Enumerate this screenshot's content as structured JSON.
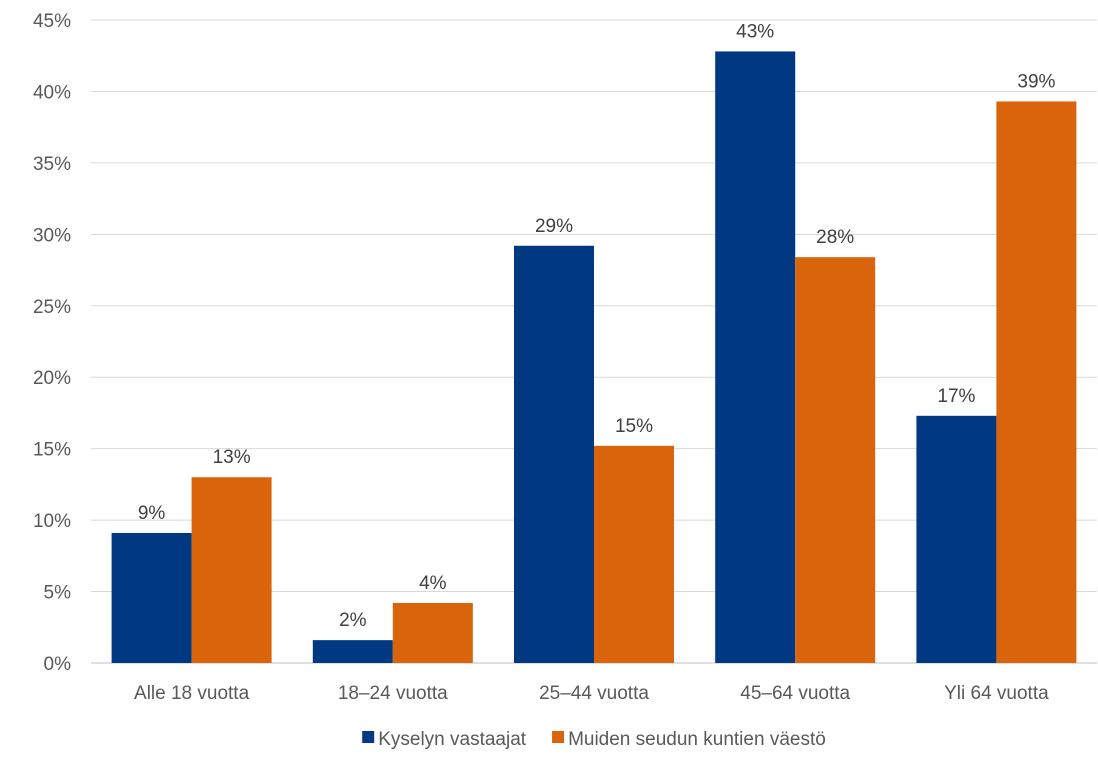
{
  "chart_data": {
    "type": "bar",
    "categories": [
      "Alle 18 vuotta",
      "18–24 vuotta",
      "25–44 vuotta",
      "45–64 vuotta",
      "Yli 64 vuotta"
    ],
    "series": [
      {
        "name": "Kyselyn vastaajat",
        "color": "#003882",
        "values": [
          9.1,
          1.6,
          29.2,
          42.8,
          17.3
        ],
        "labels": [
          "9%",
          "2%",
          "29%",
          "43%",
          "17%"
        ]
      },
      {
        "name": "Muiden seudun kuntien väestö",
        "color": "#d9640c",
        "values": [
          13.0,
          4.2,
          15.2,
          28.4,
          39.3
        ],
        "labels": [
          "13%",
          "4%",
          "15%",
          "28%",
          "39%"
        ]
      }
    ],
    "ylim": [
      0,
      45
    ],
    "yticks": [
      0,
      5,
      10,
      15,
      20,
      25,
      30,
      35,
      40,
      45
    ],
    "ytick_labels": [
      "0%",
      "5%",
      "10%",
      "15%",
      "20%",
      "25%",
      "30%",
      "35%",
      "40%",
      "45%"
    ],
    "grid": true,
    "legend": "bottom"
  }
}
